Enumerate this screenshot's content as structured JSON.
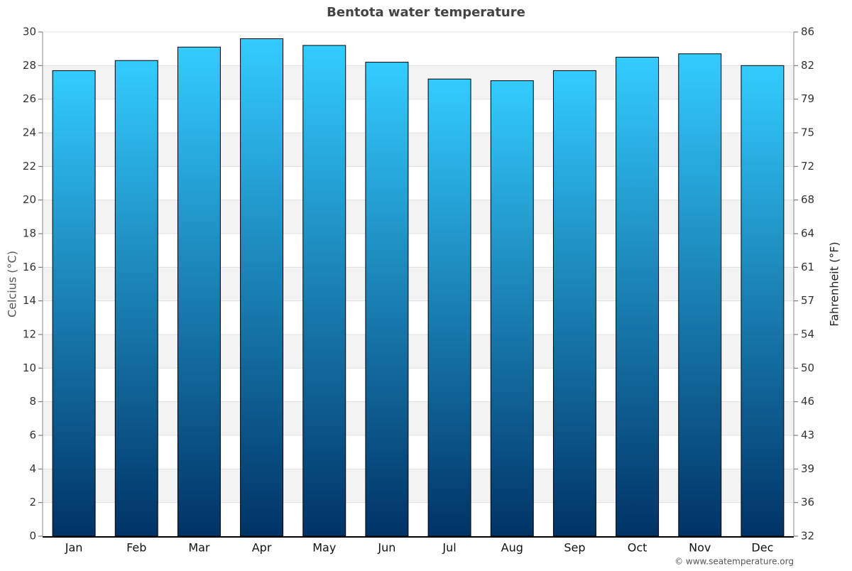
{
  "chart_data": {
    "type": "bar",
    "title": "Bentota water temperature",
    "y_label": "Celcius (°C)",
    "y2_label": "Fahrenheit (°F)",
    "credit": "© www.seatemperature.org",
    "categories": [
      "Jan",
      "Feb",
      "Mar",
      "Apr",
      "May",
      "Jun",
      "Jul",
      "Aug",
      "Sep",
      "Oct",
      "Nov",
      "Dec"
    ],
    "values": [
      27.7,
      28.3,
      29.1,
      29.6,
      29.2,
      28.2,
      27.2,
      27.1,
      27.7,
      28.5,
      28.7,
      28.0
    ],
    "color_top": "#33ccff",
    "color_bottom": "#003366",
    "ylim": [
      0,
      30
    ],
    "yticks": [
      0,
      2,
      4,
      6,
      8,
      10,
      12,
      14,
      16,
      18,
      20,
      22,
      24,
      26,
      28,
      30
    ],
    "y2lim": [
      32,
      86
    ],
    "y2ticks": [
      32,
      {
        "value": 35.6,
        "label": "36"
      },
      {
        "value": 39.2,
        "label": "39"
      },
      {
        "value": 42.8,
        "label": "43"
      },
      {
        "value": 46.4,
        "label": "46"
      },
      50,
      {
        "value": 53.6,
        "label": "54"
      },
      {
        "value": 57.2,
        "label": "57"
      },
      {
        "value": 60.8,
        "label": "61"
      },
      {
        "value": 64.4,
        "label": "64"
      },
      68,
      {
        "value": 71.6,
        "label": "72"
      },
      {
        "value": 75.2,
        "label": "75"
      },
      {
        "value": 78.8,
        "label": "79"
      },
      {
        "value": 82.4,
        "label": "82"
      },
      86
    ],
    "grid": true
  }
}
